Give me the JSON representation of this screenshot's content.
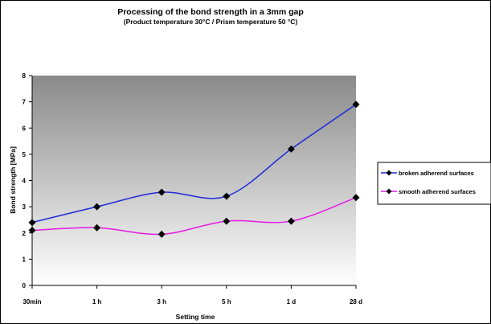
{
  "chart_data": {
    "type": "line",
    "title": "Processing of the bond strength in a 3mm gap",
    "subtitle": "(Product temperature 30°C / Prism temperature 50 °C)",
    "xlabel": "Setting time",
    "ylabel": "Bond strength [MPa]",
    "categories": [
      "30min",
      "1 h",
      "3 h",
      "5 h",
      "1 d",
      "28 d"
    ],
    "ylim": [
      0,
      8
    ],
    "yticks": [
      0,
      1,
      2,
      3,
      4,
      5,
      6,
      7,
      8
    ],
    "series": [
      {
        "name": "broken adherend surfaces",
        "color": "#1f2ad8",
        "values": [
          2.4,
          3.0,
          3.55,
          3.4,
          5.2,
          6.9
        ]
      },
      {
        "name": "smooth adherend surfaces",
        "color": "#e619e6",
        "values": [
          2.1,
          2.2,
          1.95,
          2.45,
          2.45,
          3.35
        ]
      }
    ],
    "legend_position": "right",
    "plot_background": "gradient gray"
  }
}
